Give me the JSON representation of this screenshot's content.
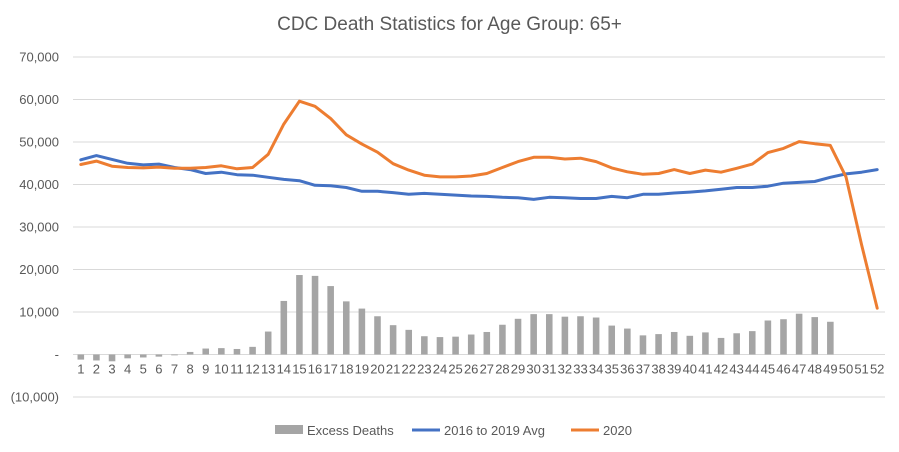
{
  "chart_data": {
    "type": "bar+line",
    "title": "CDC Death Statistics for Age Group: 65+",
    "xlabel": "",
    "ylabel": "",
    "ylim": [
      -10000,
      70000
    ],
    "yticks": [
      -10000,
      0,
      10000,
      20000,
      30000,
      40000,
      50000,
      60000,
      70000
    ],
    "ytick_labels": [
      "(10,000)",
      "-",
      "10,000",
      "20,000",
      "30,000",
      "40,000",
      "50,000",
      "60,000",
      "70,000"
    ],
    "grid": "horizontal",
    "legend_position": "bottom",
    "x": [
      1,
      2,
      3,
      4,
      5,
      6,
      7,
      8,
      9,
      10,
      11,
      12,
      13,
      14,
      15,
      16,
      17,
      18,
      19,
      20,
      21,
      22,
      23,
      24,
      25,
      26,
      27,
      28,
      29,
      30,
      31,
      32,
      33,
      34,
      35,
      36,
      37,
      38,
      39,
      40,
      41,
      42,
      43,
      44,
      45,
      46,
      47,
      48,
      49,
      50,
      51,
      52
    ],
    "series": [
      {
        "name": "Excess Deaths",
        "type": "bar",
        "color": "#A5A5A5",
        "values": [
          -1200,
          -1400,
          -1600,
          -900,
          -700,
          -500,
          -200,
          600,
          1400,
          1500,
          1300,
          1800,
          5400,
          12600,
          18700,
          18500,
          16100,
          12500,
          10800,
          9000,
          6900,
          5800,
          4300,
          4100,
          4200,
          4700,
          5300,
          7000,
          8400,
          9500,
          9500,
          8900,
          9000,
          8700,
          6800,
          6100,
          4500,
          4800,
          5300,
          4400,
          5200,
          3900,
          5000,
          5500,
          8000,
          8300,
          9600,
          8800,
          7700,
          null,
          null,
          null
        ]
      },
      {
        "name": "2016 to 2019 Avg",
        "type": "line",
        "color": "#4472C4",
        "values": [
          45800,
          46800,
          45900,
          45000,
          44600,
          44800,
          44000,
          43500,
          42600,
          42900,
          42300,
          42200,
          41700,
          41200,
          40900,
          39800,
          39700,
          39300,
          38400,
          38400,
          38100,
          37700,
          37900,
          37700,
          37500,
          37300,
          37200,
          37000,
          36900,
          36500,
          37000,
          36900,
          36700,
          36700,
          37200,
          36900,
          37700,
          37700,
          38000,
          38200,
          38500,
          38900,
          39300,
          39300,
          39600,
          40300,
          40500,
          40700,
          41700,
          42500,
          42900,
          43500
        ]
      },
      {
        "name": "2020",
        "type": "line",
        "color": "#ED7D31",
        "values": [
          44700,
          45500,
          44300,
          44000,
          43900,
          44100,
          43800,
          43800,
          44000,
          44400,
          43700,
          44000,
          47100,
          54200,
          59600,
          58400,
          55500,
          51700,
          49500,
          47600,
          44900,
          43400,
          42200,
          41800,
          41800,
          42000,
          42600,
          44000,
          45400,
          46400,
          46400,
          46000,
          46200,
          45400,
          43900,
          43000,
          42400,
          42600,
          43500,
          42600,
          43400,
          42900,
          43800,
          44800,
          47500,
          48500,
          50100,
          49600,
          49200,
          41800,
          25800,
          10900
        ]
      }
    ]
  }
}
